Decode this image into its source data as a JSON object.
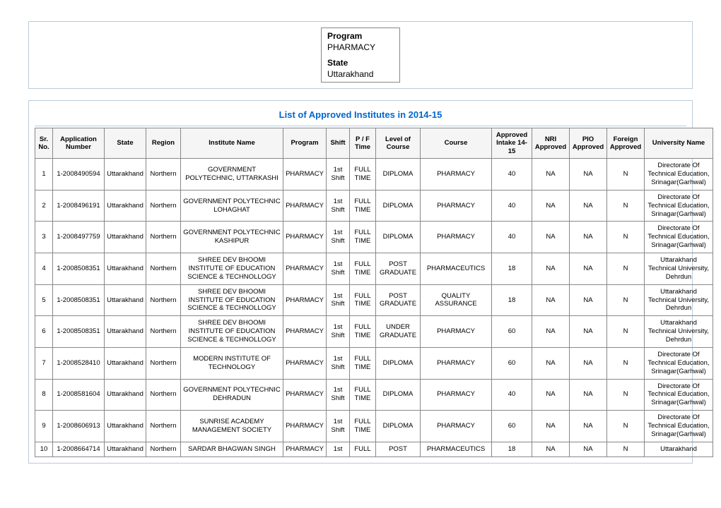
{
  "header": {
    "program_label": "Program",
    "program_value": "PHARMACY",
    "state_label": "State",
    "state_value": "Uttarakhand"
  },
  "title": "List of Approved Institutes in 2014-15",
  "columns": [
    "Sr. No.",
    "Application Number",
    "State",
    "Region",
    "Institute Name",
    "Program",
    "Shift",
    "P / F Time",
    "Level of Course",
    "Course",
    "Approved Intake 14-15",
    "NRI Approved",
    "PIO Approved",
    "Foreign Approved",
    "University Name"
  ],
  "column_classes": [
    "c-srno",
    "c-app",
    "c-state",
    "c-region",
    "c-inst",
    "c-prog",
    "c-shift",
    "c-pf",
    "c-level",
    "c-course",
    "c-intake",
    "c-nri",
    "c-pio",
    "c-for",
    "c-univ"
  ],
  "rows": [
    [
      "1",
      "1-2008490594",
      "Uttarakhand",
      "Northern",
      "GOVERNMENT POLYTECHNIC, UTTARKASHI",
      "PHARMACY",
      "1st Shift",
      "FULL TIME",
      "DIPLOMA",
      "PHARMACY",
      "40",
      "NA",
      "NA",
      "N",
      "Directorate Of Technical Education, Srinagar(Garhwal)"
    ],
    [
      "2",
      "1-2008496191",
      "Uttarakhand",
      "Northern",
      "GOVERNMENT POLYTECHNIC LOHAGHAT",
      "PHARMACY",
      "1st Shift",
      "FULL TIME",
      "DIPLOMA",
      "PHARMACY",
      "40",
      "NA",
      "NA",
      "N",
      "Directorate Of Technical Education, Srinagar(Garhwal)"
    ],
    [
      "3",
      "1-2008497759",
      "Uttarakhand",
      "Northern",
      "GOVERNMENT POLYTECHNIC KASHIPUR",
      "PHARMACY",
      "1st Shift",
      "FULL TIME",
      "DIPLOMA",
      "PHARMACY",
      "40",
      "NA",
      "NA",
      "N",
      "Directorate Of Technical Education, Srinagar(Garhwal)"
    ],
    [
      "4",
      "1-2008508351",
      "Uttarakhand",
      "Northern",
      "SHREE DEV BHOOMI INSTITUTE OF EDUCATION SCIENCE & TECHNOLLOGY",
      "PHARMACY",
      "1st Shift",
      "FULL TIME",
      "POST GRADUATE",
      "PHARMACEUTICS",
      "18",
      "NA",
      "NA",
      "N",
      "Uttarakhand Technical University, Dehrdun"
    ],
    [
      "5",
      "1-2008508351",
      "Uttarakhand",
      "Northern",
      "SHREE DEV BHOOMI INSTITUTE OF EDUCATION SCIENCE & TECHNOLLOGY",
      "PHARMACY",
      "1st Shift",
      "FULL TIME",
      "POST GRADUATE",
      "QUALITY ASSURANCE",
      "18",
      "NA",
      "NA",
      "N",
      "Uttarakhand Technical University, Dehrdun"
    ],
    [
      "6",
      "1-2008508351",
      "Uttarakhand",
      "Northern",
      "SHREE DEV BHOOMI INSTITUTE OF EDUCATION SCIENCE & TECHNOLLOGY",
      "PHARMACY",
      "1st Shift",
      "FULL TIME",
      "UNDER GRADUATE",
      "PHARMACY",
      "60",
      "NA",
      "NA",
      "N",
      "Uttarakhand Technical University, Dehrdun"
    ],
    [
      "7",
      "1-2008528410",
      "Uttarakhand",
      "Northern",
      "MODERN INSTITUTE OF TECHNOLOGY",
      "PHARMACY",
      "1st Shift",
      "FULL TIME",
      "DIPLOMA",
      "PHARMACY",
      "60",
      "NA",
      "NA",
      "N",
      "Directorate Of Technical Education, Srinagar(Garhwal)"
    ],
    [
      "8",
      "1-2008581604",
      "Uttarakhand",
      "Northern",
      "GOVERNMENT POLYTECHNIC DEHRADUN",
      "PHARMACY",
      "1st Shift",
      "FULL TIME",
      "DIPLOMA",
      "PHARMACY",
      "40",
      "NA",
      "NA",
      "N",
      "Directorate Of Technical Education, Srinagar(Garhwal)"
    ],
    [
      "9",
      "1-2008606913",
      "Uttarakhand",
      "Northern",
      "SUNRISE ACADEMY MANAGEMENT SOCIETY",
      "PHARMACY",
      "1st Shift",
      "FULL TIME",
      "DIPLOMA",
      "PHARMACY",
      "60",
      "NA",
      "NA",
      "N",
      "Directorate Of Technical Education, Srinagar(Garhwal)"
    ],
    [
      "10",
      "1-2008664714",
      "Uttarakhand",
      "Northern",
      "SARDAR BHAGWAN SINGH",
      "PHARMACY",
      "1st",
      "FULL",
      "POST",
      "PHARMACEUTICS",
      "18",
      "NA",
      "NA",
      "N",
      "Uttarakhand"
    ]
  ]
}
